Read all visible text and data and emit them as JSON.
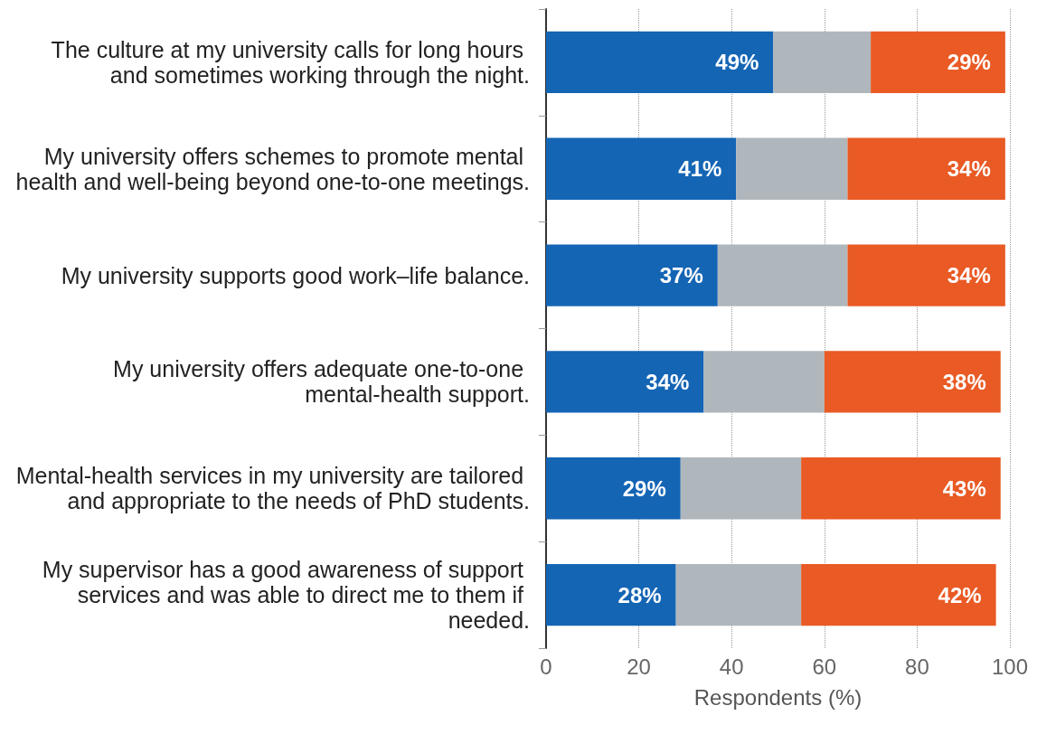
{
  "chart_data": {
    "type": "bar",
    "orientation": "horizontal",
    "stacked": true,
    "xlabel": "Respondents (%)",
    "categories": [
      "The culture at my university calls for long hours and sometimes working through the night.",
      "My university offers schemes to promote mental health and well-being beyond one-to-one meetings.",
      "My university supports good work–life balance.",
      "My university offers adequate one-to-one mental-health support.",
      "Mental-health services in my university are tailored and appropriate to the needs of PhD students.",
      "My supervisor has a good awareness of support services and was able to direct me to them if needed."
    ],
    "series": [
      {
        "color": "#1565b5",
        "values": [
          49,
          41,
          37,
          34,
          29,
          28
        ],
        "value_labels": [
          "49%",
          "41%",
          "37%",
          "34%",
          "29%",
          "28%"
        ]
      },
      {
        "color": "#b0b7bc",
        "values": [
          21,
          24,
          28,
          26,
          26,
          27
        ]
      },
      {
        "color": "#e95a24",
        "values": [
          29,
          34,
          34,
          38,
          43,
          42
        ],
        "value_labels": [
          "29%",
          "34%",
          "34%",
          "38%",
          "43%",
          "42%"
        ]
      }
    ],
    "xlim": [
      0,
      100
    ],
    "xticks": [
      0,
      20,
      40,
      60,
      80,
      100
    ],
    "grid": "x"
  }
}
